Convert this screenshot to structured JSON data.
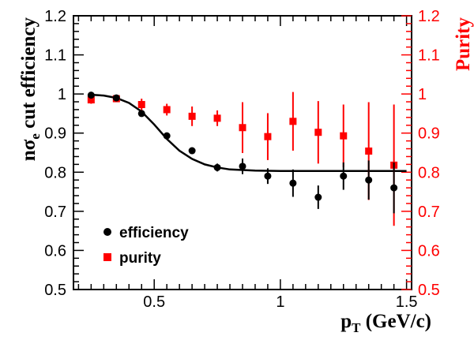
{
  "chart_data": {
    "type": "scatter",
    "xlim": [
      0.18,
      1.52
    ],
    "ylim": [
      0.5,
      1.2
    ],
    "y2lim": [
      0.5,
      1.2
    ],
    "x_ticks": [
      0.5,
      1,
      1.5
    ],
    "x_tick_labels": [
      "0.5",
      "1",
      "1.5"
    ],
    "y_ticks": [
      0.5,
      0.6,
      0.7,
      0.8,
      0.9,
      1.0,
      1.1,
      1.2
    ],
    "y_tick_labels": [
      "0.5",
      "0.6",
      "0.7",
      "0.8",
      "0.9",
      "1",
      "1.1",
      "1.2"
    ],
    "y2_tick_labels": [
      "0.5",
      "0.6",
      "0.7",
      "0.8",
      "0.9",
      "1",
      "1.1",
      "1.2"
    ],
    "xlabel_main": "p",
    "xlabel_sub": "T",
    "xlabel_rest": " (GeV/c)",
    "ylabel_pre": "n",
    "ylabel_sigma": "σ",
    "ylabel_sub": "e",
    "ylabel_rest": " cut efficiency",
    "y2label": "Purity",
    "colors": {
      "efficiency": "#000000",
      "purity": "#ff0000",
      "axis": "#000000",
      "y2axis": "#ff0000"
    },
    "series": [
      {
        "name": "efficiency",
        "marker": "circle",
        "color": "#000000",
        "x": [
          0.25,
          0.35,
          0.45,
          0.55,
          0.65,
          0.75,
          0.85,
          0.95,
          1.05,
          1.15,
          1.25,
          1.35,
          1.45
        ],
        "y": [
          0.997,
          0.99,
          0.95,
          0.893,
          0.855,
          0.812,
          0.815,
          0.79,
          0.772,
          0.736,
          0.79,
          0.78,
          0.76
        ],
        "yerr": [
          0.004,
          0.005,
          0.008,
          0.008,
          0.008,
          0.01,
          0.02,
          0.02,
          0.035,
          0.03,
          0.035,
          0.05,
          0.065
        ]
      },
      {
        "name": "purity",
        "marker": "square",
        "color": "#ff0000",
        "x": [
          0.25,
          0.35,
          0.45,
          0.55,
          0.65,
          0.75,
          0.85,
          0.95,
          1.05,
          1.15,
          1.25,
          1.35,
          1.45
        ],
        "y": [
          0.985,
          0.988,
          0.973,
          0.96,
          0.943,
          0.938,
          0.914,
          0.891,
          0.93,
          0.902,
          0.893,
          0.854,
          0.818
        ],
        "yerr": [
          0.01,
          0.008,
          0.015,
          0.015,
          0.025,
          0.02,
          0.065,
          0.06,
          0.075,
          0.08,
          0.08,
          0.125,
          0.155
        ]
      }
    ],
    "fit_curve": {
      "color": "#000000",
      "x": [
        0.25,
        0.3,
        0.35,
        0.4,
        0.45,
        0.5,
        0.55,
        0.6,
        0.65,
        0.7,
        0.75,
        0.8,
        0.9,
        1.0,
        1.2,
        1.5
      ],
      "y": [
        0.998,
        0.996,
        0.99,
        0.977,
        0.955,
        0.922,
        0.885,
        0.855,
        0.834,
        0.82,
        0.812,
        0.807,
        0.804,
        0.803,
        0.803,
        0.803
      ]
    },
    "legend": [
      {
        "label": "efficiency",
        "marker": "circle",
        "color": "#000000"
      },
      {
        "label": "purity",
        "marker": "square",
        "color": "#ff0000"
      }
    ]
  }
}
